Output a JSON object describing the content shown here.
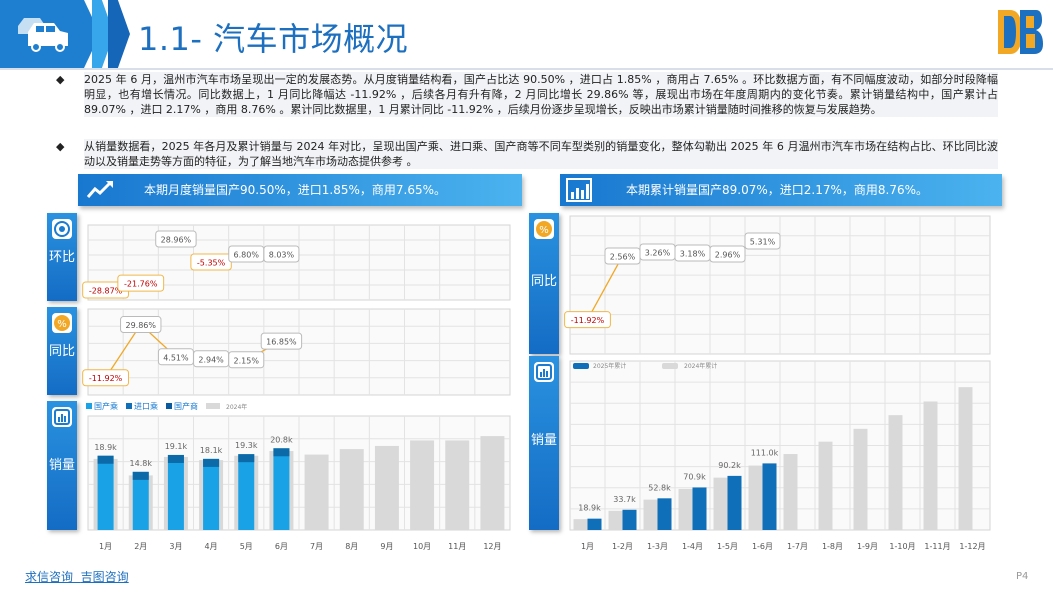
{
  "header": {
    "title": "1.1- 汽车市场概况"
  },
  "paragraphs": [
    "2025 年 6 月，温州市汽车市场呈现出一定的发展态势。从月度销量结构看，国产占比达 90.50% ，进口占 1.85% ，商用占 7.65% 。环比数据方面，有不同幅度波动，如部分时段降幅明显，也有增长情况。同比数据上，1 月同比降幅达 -11.92% ，后续各月有升有降，2 月同比增长 29.86% 等，展现出市场在年度周期内的变化节奏。累计销量结构中，国产累计占 89.07% ，进口 2.17% ，商用 8.76% 。累计同比数据里，1 月累计同比 -11.92% ，后续月份逐步呈现增长，反映出市场累计销量随时间推移的恢复与发展趋势。",
    "从销量数据看，2025 年各月及累计销量与 2024 年对比，呈现出国产乘、进口乘、国产商等不同车型类别的销量变化，整体勾勒出 2025 年 6 月温州市汽车市场在结构占比、环比同比波动以及销量走势等方面的特征，为了解当地汽车市场动态提供参考 。"
  ],
  "bullet_symbol": "◆",
  "left_panel": {
    "heading": "本期月度销量国产90.50%，进口1.85%，商用7.65%。"
  },
  "right_panel": {
    "heading": "本期累计销量国产89.07%，进口2.17%，商用8.76%。"
  },
  "tabs": {
    "mom": "环比",
    "yoy": "同比",
    "sales": "销量"
  },
  "colors": {
    "primary": "#1a7bd0",
    "bar2025": "#1aa2e6",
    "bar2025_dark": "#0f6fb8",
    "bar2024": "#d9d9d9",
    "negative": "#c00000",
    "label_border": "#f0b84a"
  },
  "chart_data": [
    {
      "type": "line",
      "title": "环比",
      "categories": [
        "1月",
        "2月",
        "3月",
        "4月",
        "5月",
        "6月"
      ],
      "values": [
        -28.87,
        -21.76,
        28.96,
        -5.35,
        6.8,
        8.03
      ],
      "labels": [
        "-28.87%",
        "-21.76%",
        "28.96%",
        "-5.35%",
        "6.80%",
        "8.03%"
      ]
    },
    {
      "type": "line",
      "title": "同比",
      "categories": [
        "1月",
        "2月",
        "3月",
        "4月",
        "5月",
        "6月"
      ],
      "values": [
        -11.92,
        29.86,
        4.51,
        2.94,
        2.15,
        16.85
      ],
      "labels": [
        "-11.92%",
        "29.86%",
        "4.51%",
        "2.94%",
        "2.15%",
        "16.85%"
      ]
    },
    {
      "type": "bar",
      "title": "销量",
      "categories": [
        "1月",
        "2月",
        "3月",
        "4月",
        "5月",
        "6月",
        "7月",
        "8月",
        "9月",
        "10月",
        "11月",
        "12月"
      ],
      "legend": [
        "国产乘",
        "进口乘",
        "国产商",
        "2024年"
      ],
      "series": [
        {
          "name": "2025",
          "values": [
            18.9,
            14.8,
            19.1,
            18.1,
            19.3,
            20.8,
            null,
            null,
            null,
            null,
            null,
            null
          ],
          "labels": [
            "18.9k",
            "14.8k",
            "19.1k",
            "18.1k",
            "19.3k",
            "20.8k"
          ]
        },
        {
          "name": "2024年",
          "values": [
            18.1,
            13.9,
            18.6,
            17.8,
            18.9,
            20.1,
            19.2,
            20.6,
            21.4,
            22.8,
            22.8,
            23.9
          ]
        }
      ],
      "ylim": [
        0,
        28
      ]
    },
    {
      "type": "line",
      "title": "同比",
      "categories": [
        "1月",
        "1-2月",
        "1-3月",
        "1-4月",
        "1-5月",
        "1-6月"
      ],
      "values": [
        -11.92,
        2.56,
        3.26,
        3.18,
        2.96,
        5.31
      ],
      "labels": [
        "-11.92%",
        "2.56%",
        "3.26%",
        "3.18%",
        "2.96%",
        "5.31%"
      ]
    },
    {
      "type": "bar",
      "title": "销量",
      "categories": [
        "1月",
        "1-2月",
        "1-3月",
        "1-4月",
        "1-5月",
        "1-6月",
        "1-7月",
        "1-8月",
        "1-9月",
        "1-10月",
        "1-11月",
        "1-12月"
      ],
      "legend": [
        "2025年累计",
        "2024年累计"
      ],
      "series": [
        {
          "name": "2025年累计",
          "values": [
            18.9,
            33.7,
            52.8,
            70.9,
            90.2,
            111.0,
            null,
            null,
            null,
            null,
            null,
            null
          ],
          "labels": [
            "18.9k",
            "33.7k",
            "52.8k",
            "70.9k",
            "90.2k",
            "111.0k"
          ]
        },
        {
          "name": "2024年累计",
          "values": [
            18.1,
            32.0,
            50.6,
            68.4,
            87.3,
            107.4,
            126.6,
            147.2,
            168.6,
            191.4,
            214.2,
            238.1
          ]
        }
      ],
      "ylim": [
        0,
        260
      ]
    }
  ],
  "footer": {
    "link1": "求信咨询",
    "link2": "吉图咨询",
    "page": "P4"
  }
}
